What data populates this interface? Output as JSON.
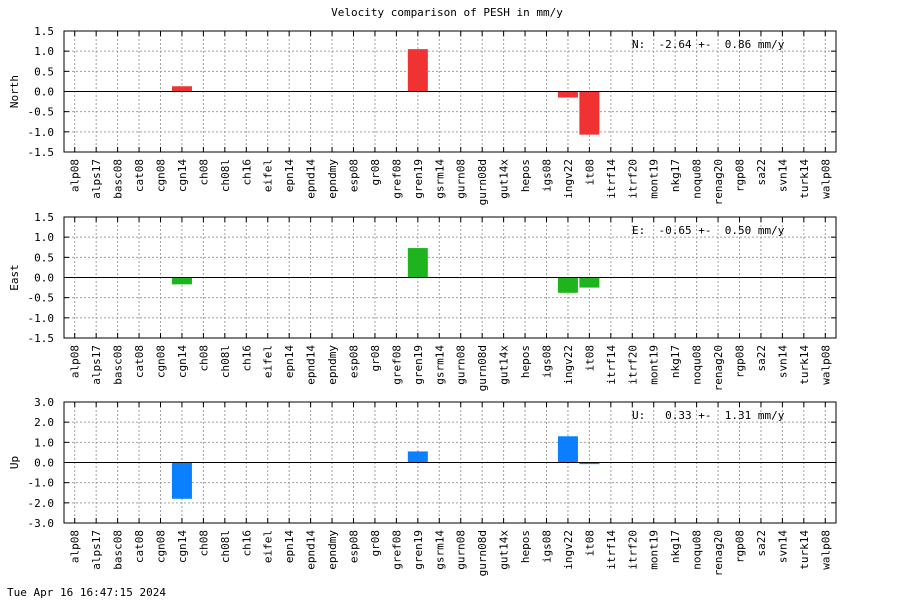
{
  "figure": {
    "title": "Velocity comparison of PESH in mm/y",
    "timestamp": "Tue Apr 16 16:47:15 2024"
  },
  "colors": {
    "north": "#f03232",
    "east": "#1eb41e",
    "up": "#0a80ff",
    "grid": "#a0a0a0",
    "axis": "#000000"
  },
  "chart_data": [
    {
      "type": "bar",
      "ylabel": "North",
      "ylim": [
        -1.5,
        1.5
      ],
      "yticks": [
        "1.5",
        "1.0",
        "0.5",
        "0.0",
        "-0.5",
        "-1.0",
        "-1.5"
      ],
      "annotation": "N:  -2.64 +-  0.86 mm/y",
      "grid": true,
      "categories": [
        "alp08",
        "alps17",
        "basc08",
        "cat08",
        "cgn08",
        "cgn14",
        "ch08",
        "ch08l",
        "ch16",
        "eifel",
        "epn14",
        "epnd14",
        "epndmy",
        "esp08",
        "gr08",
        "gref08",
        "gren19",
        "gsrm14",
        "gurn08",
        "gurn08d",
        "gut14x",
        "hepos",
        "igs08",
        "ingv22",
        "it08",
        "itrf14",
        "itrf20",
        "mont19",
        "nkg17",
        "noqu08",
        "renag20",
        "rgp08",
        "sa22",
        "svn14",
        "turk14",
        "walp08"
      ],
      "values": [
        0,
        0,
        0,
        0,
        0,
        0.13,
        0,
        0,
        0,
        0,
        0,
        0,
        0,
        0,
        0,
        0,
        1.05,
        0,
        0,
        0,
        0,
        0,
        0,
        -0.15,
        -1.07,
        0,
        0,
        0,
        0,
        0,
        0,
        0,
        0,
        0,
        0,
        0
      ]
    },
    {
      "type": "bar",
      "ylabel": "East",
      "ylim": [
        -1.5,
        1.5
      ],
      "yticks": [
        "1.5",
        "1.0",
        "0.5",
        "0.0",
        "-0.5",
        "-1.0",
        "-1.5"
      ],
      "annotation": "E:  -0.65 +-  0.50 mm/y",
      "grid": true,
      "categories": [
        "alp08",
        "alps17",
        "basc08",
        "cat08",
        "cgn08",
        "cgn14",
        "ch08",
        "ch08l",
        "ch16",
        "eifel",
        "epn14",
        "epnd14",
        "epndmy",
        "esp08",
        "gr08",
        "gref08",
        "gren19",
        "gsrm14",
        "gurn08",
        "gurn08d",
        "gut14x",
        "hepos",
        "igs08",
        "ingv22",
        "it08",
        "itrf14",
        "itrf20",
        "mont19",
        "nkg17",
        "noqu08",
        "renag20",
        "rgp08",
        "sa22",
        "svn14",
        "turk14",
        "walp08"
      ],
      "values": [
        0,
        0,
        0,
        0,
        0,
        -0.17,
        0,
        0,
        0,
        0,
        0,
        0,
        0,
        0,
        0,
        0,
        0.73,
        0,
        0,
        0,
        0,
        0,
        0,
        -0.38,
        -0.25,
        0,
        0,
        0,
        0,
        0,
        0,
        0,
        0,
        0,
        0,
        0
      ]
    },
    {
      "type": "bar",
      "ylabel": "Up",
      "ylim": [
        -3.0,
        3.0
      ],
      "yticks": [
        "3.0",
        "2.0",
        "1.0",
        "0.0",
        "-1.0",
        "-2.0",
        "-3.0"
      ],
      "annotation": "U:   0.33 +-  1.31 mm/y",
      "grid": true,
      "categories": [
        "alp08",
        "alps17",
        "basc08",
        "cat08",
        "cgn08",
        "cgn14",
        "ch08",
        "ch08l",
        "ch16",
        "eifel",
        "epn14",
        "epnd14",
        "epndmy",
        "esp08",
        "gr08",
        "gref08",
        "gren19",
        "gsrm14",
        "gurn08",
        "gurn08d",
        "gut14x",
        "hepos",
        "igs08",
        "ingv22",
        "it08",
        "itrf14",
        "itrf20",
        "mont19",
        "nkg17",
        "noqu08",
        "renag20",
        "rgp08",
        "sa22",
        "svn14",
        "turk14",
        "walp08"
      ],
      "values": [
        0,
        0,
        0,
        0,
        0,
        -1.8,
        0,
        0,
        0,
        0,
        0,
        0,
        0,
        0,
        0,
        0,
        0.55,
        0,
        0,
        0,
        0,
        0,
        0,
        1.3,
        -0.08,
        0,
        0,
        0,
        0,
        0,
        0,
        0,
        0,
        0,
        0,
        0
      ]
    }
  ]
}
